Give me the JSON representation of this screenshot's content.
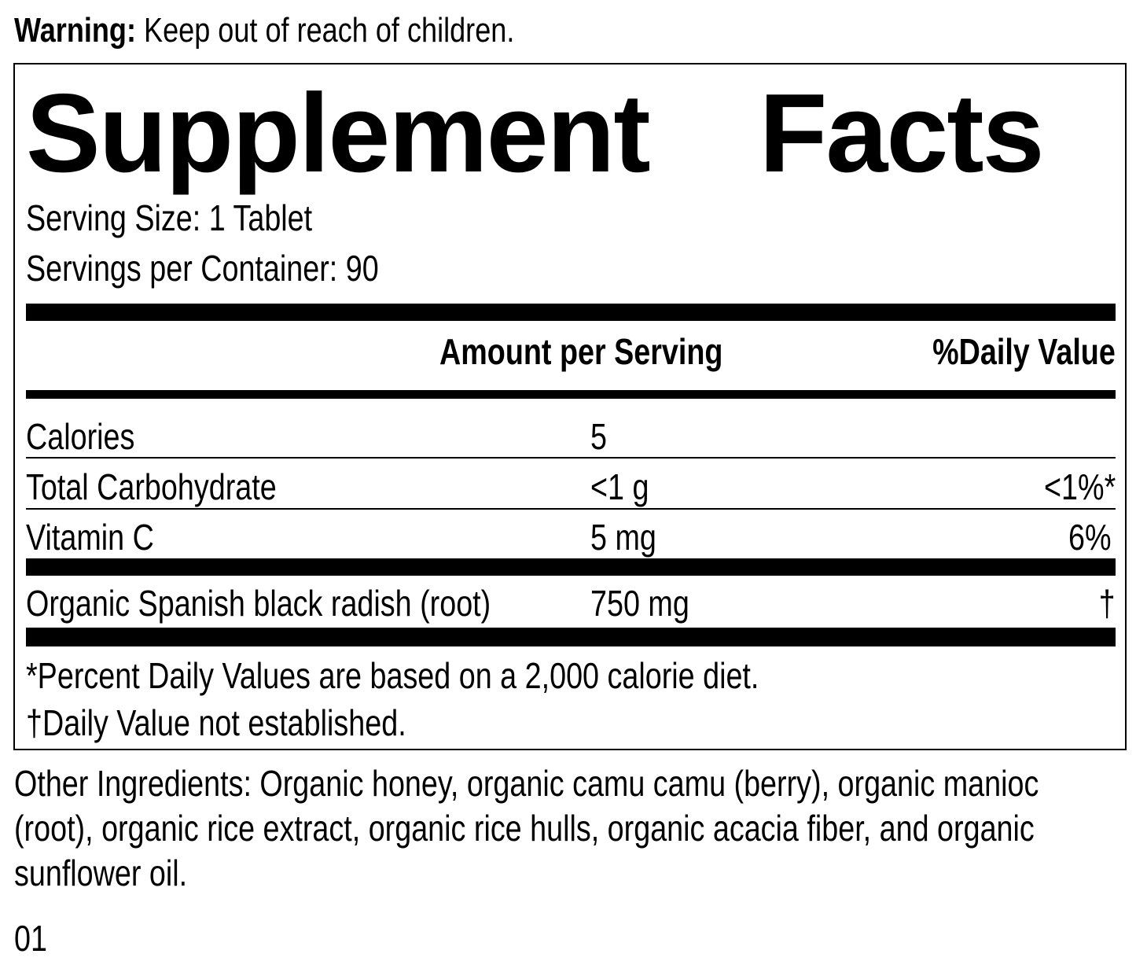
{
  "warning": {
    "label": "Warning:",
    "text": " Keep out of reach of children."
  },
  "title": {
    "word1": "Supplement",
    "word2": "Facts"
  },
  "serving_size": "Serving Size: 1 Tablet",
  "servings_per_container": "Servings per Container: 90",
  "headers": {
    "amount": "Amount per Serving",
    "dv": "%Daily Value"
  },
  "rows": [
    {
      "name": "Calories",
      "amount": "5",
      "dv": ""
    },
    {
      "name": "Total Carbohydrate",
      "amount": "<1 g",
      "dv": "<1%*"
    },
    {
      "name": "Vitamin C",
      "amount": "5 mg",
      "dv": "6%"
    },
    {
      "name": "Organic Spanish black radish (root)",
      "amount": "750 mg",
      "dv": "†"
    }
  ],
  "footnotes": [
    "*Percent Daily Values are based on a 2,000 calorie diet.",
    "†Daily Value not established."
  ],
  "other_ingredients": "Other Ingredients: Organic honey, organic camu camu (berry), organic manioc (root), organic rice extract, organic rice hulls, organic acacia fiber, and organic sunflower oil.",
  "code": "01"
}
